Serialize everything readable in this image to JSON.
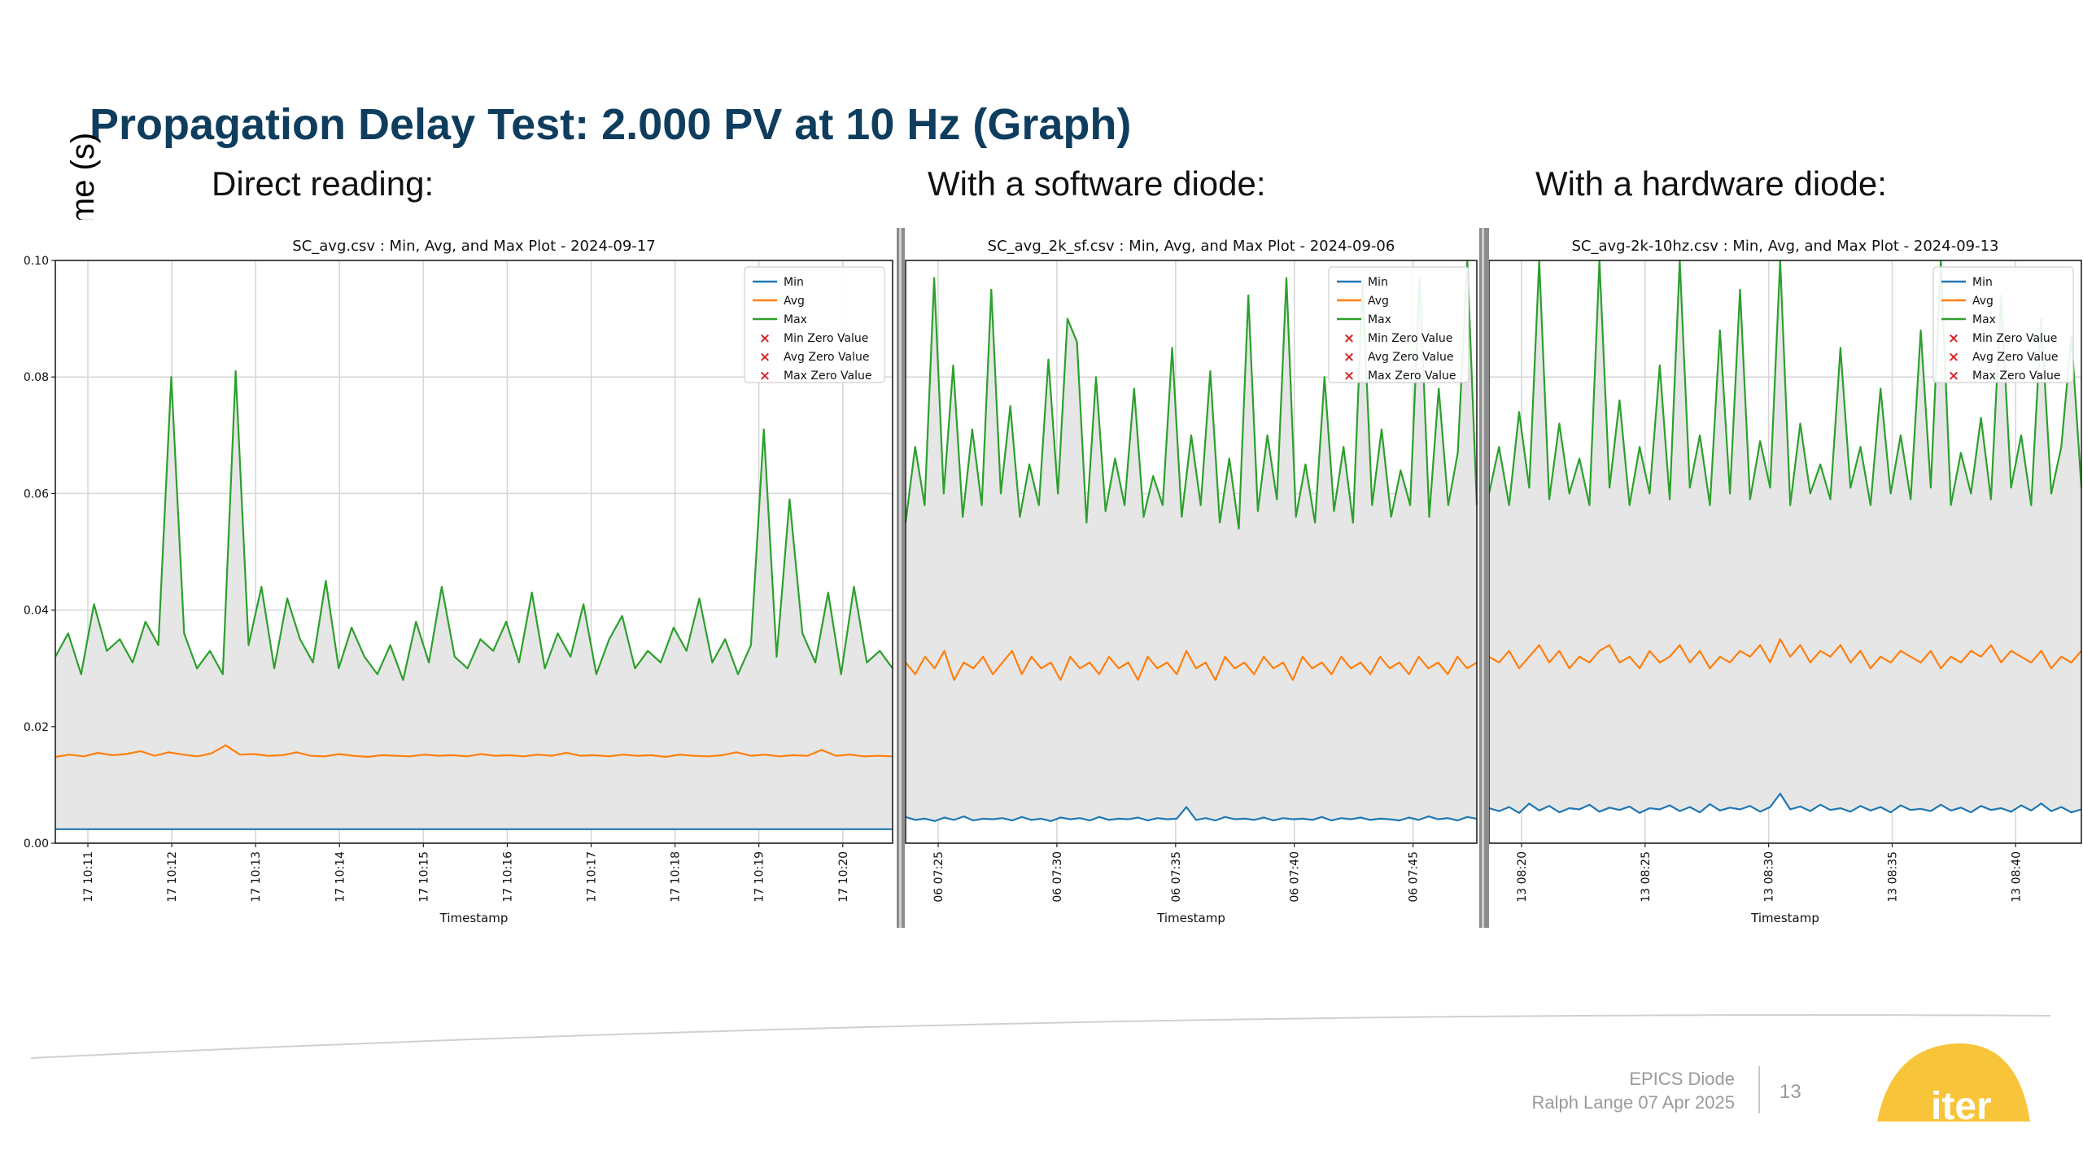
{
  "slide": {
    "title": "Propagation Delay Test: 2.000 PV at 10 Hz (Graph)",
    "y_axis_label": "Time (s)",
    "panel_labels": [
      "Direct reading:",
      "With a software diode:",
      "With a hardware diode:"
    ],
    "footer": {
      "title": "EPICS Diode",
      "author_date": "Ralph Lange  07 Apr 2025",
      "page_number": "13",
      "logo_text": "iter"
    },
    "colors": {
      "title": "#0f3d5e",
      "min": "#1f77b4",
      "avg": "#ff7f0e",
      "max": "#2ca02c",
      "zero_marker": "#d62728",
      "band_fill": "#e6e6e6",
      "logo": "#f8c43a"
    }
  },
  "chart_data": [
    {
      "type": "line",
      "title": "SC_avg.csv : Min, Avg, and Max Plot - 2024-09-17",
      "xlabel": "Timestamp",
      "ylabel": "",
      "ylim": [
        0,
        0.1
      ],
      "y_ticks": [
        "0.00",
        "0.02",
        "0.04",
        "0.06",
        "0.08",
        "0.10"
      ],
      "x_ticks": [
        "17 10:11",
        "17 10:12",
        "17 10:13",
        "17 10:14",
        "17 10:15",
        "17 10:16",
        "17 10:17",
        "17 10:18",
        "17 10:19",
        "17 10:20"
      ],
      "grid": true,
      "legend_position": "top-right",
      "legend": [
        "Min",
        "Avg",
        "Max",
        "Min Zero Value",
        "Avg Zero Value",
        "Max Zero Value"
      ],
      "series": [
        {
          "name": "Min",
          "values": [
            0.0024,
            0.0024,
            0.0024,
            0.0024,
            0.0024,
            0.0024,
            0.0024,
            0.0024,
            0.0024,
            0.0024,
            0.0024,
            0.0024,
            0.0024,
            0.0024,
            0.0024,
            0.0024,
            0.0024,
            0.0024,
            0.0024,
            0.0024,
            0.0024,
            0.0024,
            0.0024,
            0.0024,
            0.0024,
            0.0024,
            0.0024,
            0.0024,
            0.0024,
            0.0024,
            0.0024,
            0.0024,
            0.0024,
            0.0024,
            0.0024,
            0.0024,
            0.0024,
            0.0024,
            0.0024,
            0.0024,
            0.0024,
            0.0024,
            0.0024,
            0.0024,
            0.0024,
            0.0024,
            0.0024,
            0.0024,
            0.0024,
            0.0024,
            0.0024,
            0.0024,
            0.0024,
            0.0024,
            0.0024,
            0.0024,
            0.0024,
            0.0024,
            0.0024,
            0.0024
          ]
        },
        {
          "name": "Avg",
          "values": [
            0.0148,
            0.0152,
            0.0149,
            0.0155,
            0.0151,
            0.0153,
            0.0158,
            0.015,
            0.0156,
            0.0152,
            0.0149,
            0.0154,
            0.0168,
            0.0152,
            0.0153,
            0.015,
            0.0151,
            0.0156,
            0.015,
            0.0149,
            0.0153,
            0.015,
            0.0148,
            0.0151,
            0.015,
            0.0149,
            0.0152,
            0.015,
            0.0151,
            0.0149,
            0.0153,
            0.015,
            0.0151,
            0.0149,
            0.0152,
            0.015,
            0.0155,
            0.015,
            0.0151,
            0.0149,
            0.0152,
            0.015,
            0.0151,
            0.0148,
            0.0152,
            0.015,
            0.0149,
            0.0151,
            0.0156,
            0.015,
            0.0152,
            0.0149,
            0.0151,
            0.015,
            0.016,
            0.015,
            0.0152,
            0.0149,
            0.015,
            0.0149
          ]
        },
        {
          "name": "Max",
          "values": [
            0.032,
            0.036,
            0.029,
            0.041,
            0.033,
            0.035,
            0.031,
            0.038,
            0.034,
            0.08,
            0.036,
            0.03,
            0.033,
            0.029,
            0.081,
            0.034,
            0.044,
            0.03,
            0.042,
            0.035,
            0.031,
            0.045,
            0.03,
            0.037,
            0.032,
            0.029,
            0.034,
            0.028,
            0.038,
            0.031,
            0.044,
            0.032,
            0.03,
            0.035,
            0.033,
            0.038,
            0.031,
            0.043,
            0.03,
            0.036,
            0.032,
            0.041,
            0.029,
            0.035,
            0.039,
            0.03,
            0.033,
            0.031,
            0.037,
            0.033,
            0.042,
            0.031,
            0.035,
            0.029,
            0.034,
            0.071,
            0.032,
            0.059,
            0.036,
            0.031,
            0.043,
            0.029,
            0.044,
            0.031,
            0.033,
            0.03
          ]
        }
      ]
    },
    {
      "type": "line",
      "title": "SC_avg_2k_sf.csv : Min, Avg, and Max Plot - 2024-09-06",
      "xlabel": "Timestamp",
      "ylabel": "",
      "ylim": [
        0,
        0.1
      ],
      "y_ticks": [],
      "x_ticks": [
        "06 07:25",
        "06 07:30",
        "06 07:35",
        "06 07:40",
        "06 07:45"
      ],
      "grid": true,
      "legend_position": "top-right",
      "legend": [
        "Min",
        "Avg",
        "Max",
        "Min Zero Value",
        "Avg Zero Value",
        "Max Zero Value"
      ],
      "series": [
        {
          "name": "Min",
          "values": [
            0.0045,
            0.004,
            0.0042,
            0.0038,
            0.0044,
            0.004,
            0.0046,
            0.0039,
            0.0042,
            0.0041,
            0.0043,
            0.0039,
            0.0045,
            0.004,
            0.0042,
            0.0038,
            0.0044,
            0.0041,
            0.0043,
            0.0039,
            0.0045,
            0.004,
            0.0042,
            0.0041,
            0.0044,
            0.0039,
            0.0043,
            0.0041,
            0.0042,
            0.0062,
            0.004,
            0.0043,
            0.0039,
            0.0045,
            0.0041,
            0.0042,
            0.004,
            0.0044,
            0.0039,
            0.0043,
            0.0041,
            0.0042,
            0.004,
            0.0045,
            0.0039,
            0.0043,
            0.0041,
            0.0044,
            0.004,
            0.0042,
            0.0041,
            0.0039,
            0.0044,
            0.004,
            0.0046,
            0.0041,
            0.0043,
            0.0039,
            0.0045,
            0.0042
          ]
        },
        {
          "name": "Avg",
          "values": [
            0.031,
            0.029,
            0.032,
            0.03,
            0.033,
            0.028,
            0.031,
            0.03,
            0.032,
            0.029,
            0.031,
            0.033,
            0.029,
            0.032,
            0.03,
            0.031,
            0.028,
            0.032,
            0.03,
            0.031,
            0.029,
            0.032,
            0.03,
            0.031,
            0.028,
            0.032,
            0.03,
            0.031,
            0.029,
            0.033,
            0.03,
            0.031,
            0.028,
            0.032,
            0.03,
            0.031,
            0.029,
            0.032,
            0.03,
            0.031,
            0.028,
            0.032,
            0.03,
            0.031,
            0.029,
            0.032,
            0.03,
            0.031,
            0.029,
            0.032,
            0.03,
            0.031,
            0.029,
            0.032,
            0.03,
            0.031,
            0.029,
            0.032,
            0.03,
            0.031
          ]
        },
        {
          "name": "Max",
          "values": [
            0.055,
            0.068,
            0.058,
            0.097,
            0.06,
            0.082,
            0.056,
            0.071,
            0.058,
            0.095,
            0.06,
            0.075,
            0.056,
            0.065,
            0.058,
            0.083,
            0.06,
            0.09,
            0.086,
            0.055,
            0.08,
            0.057,
            0.066,
            0.058,
            0.078,
            0.056,
            0.063,
            0.058,
            0.085,
            0.056,
            0.07,
            0.058,
            0.081,
            0.055,
            0.066,
            0.054,
            0.094,
            0.057,
            0.07,
            0.059,
            0.097,
            0.056,
            0.065,
            0.055,
            0.08,
            0.057,
            0.068,
            0.055,
            0.096,
            0.058,
            0.071,
            0.056,
            0.064,
            0.058,
            0.097,
            0.056,
            0.078,
            0.058,
            0.067,
            0.1,
            0.058
          ]
        }
      ]
    },
    {
      "type": "line",
      "title": "SC_avg-2k-10hz.csv : Min, Avg, and Max Plot - 2024-09-13",
      "xlabel": "Timestamp",
      "ylabel": "",
      "ylim": [
        0,
        0.1
      ],
      "y_ticks": [],
      "x_ticks": [
        "13 08:20",
        "13 08:25",
        "13 08:30",
        "13 08:35",
        "13 08:40"
      ],
      "grid": true,
      "legend_position": "top-right",
      "legend": [
        "Min",
        "Avg",
        "Max",
        "Min Zero Value",
        "Avg Zero Value",
        "Max Zero Value"
      ],
      "series": [
        {
          "name": "Min",
          "values": [
            0.006,
            0.0055,
            0.0062,
            0.0052,
            0.0068,
            0.0056,
            0.0064,
            0.0053,
            0.006,
            0.0058,
            0.0066,
            0.0054,
            0.0061,
            0.0057,
            0.0063,
            0.0052,
            0.006,
            0.0058,
            0.0065,
            0.0055,
            0.0062,
            0.0053,
            0.0067,
            0.0056,
            0.0061,
            0.0058,
            0.0064,
            0.0054,
            0.0062,
            0.0085,
            0.0058,
            0.0063,
            0.0055,
            0.0066,
            0.0057,
            0.006,
            0.0054,
            0.0064,
            0.0056,
            0.0062,
            0.0053,
            0.0065,
            0.0057,
            0.0059,
            0.0055,
            0.0066,
            0.0056,
            0.0061,
            0.0053,
            0.0064,
            0.0057,
            0.006,
            0.0054,
            0.0065,
            0.0056,
            0.0068,
            0.0055,
            0.0062,
            0.0053,
            0.0058
          ]
        },
        {
          "name": "Avg",
          "values": [
            0.032,
            0.031,
            0.033,
            0.03,
            0.032,
            0.034,
            0.031,
            0.033,
            0.03,
            0.032,
            0.031,
            0.033,
            0.034,
            0.031,
            0.032,
            0.03,
            0.033,
            0.031,
            0.032,
            0.034,
            0.031,
            0.033,
            0.03,
            0.032,
            0.031,
            0.033,
            0.032,
            0.034,
            0.031,
            0.035,
            0.032,
            0.034,
            0.031,
            0.033,
            0.032,
            0.034,
            0.031,
            0.033,
            0.03,
            0.032,
            0.031,
            0.033,
            0.032,
            0.031,
            0.033,
            0.03,
            0.032,
            0.031,
            0.033,
            0.032,
            0.034,
            0.031,
            0.033,
            0.032,
            0.031,
            0.033,
            0.03,
            0.032,
            0.031,
            0.033
          ]
        },
        {
          "name": "Max",
          "values": [
            0.06,
            0.068,
            0.058,
            0.074,
            0.061,
            0.1,
            0.059,
            0.072,
            0.06,
            0.066,
            0.058,
            0.1,
            0.061,
            0.076,
            0.058,
            0.068,
            0.06,
            0.082,
            0.059,
            0.1,
            0.061,
            0.07,
            0.058,
            0.088,
            0.06,
            0.095,
            0.059,
            0.069,
            0.061,
            0.1,
            0.058,
            0.072,
            0.06,
            0.065,
            0.059,
            0.085,
            0.061,
            0.068,
            0.058,
            0.078,
            0.06,
            0.07,
            0.059,
            0.088,
            0.061,
            0.1,
            0.058,
            0.067,
            0.06,
            0.073,
            0.059,
            0.094,
            0.061,
            0.07,
            0.058,
            0.09,
            0.06,
            0.068,
            0.087,
            0.061
          ]
        }
      ]
    }
  ]
}
